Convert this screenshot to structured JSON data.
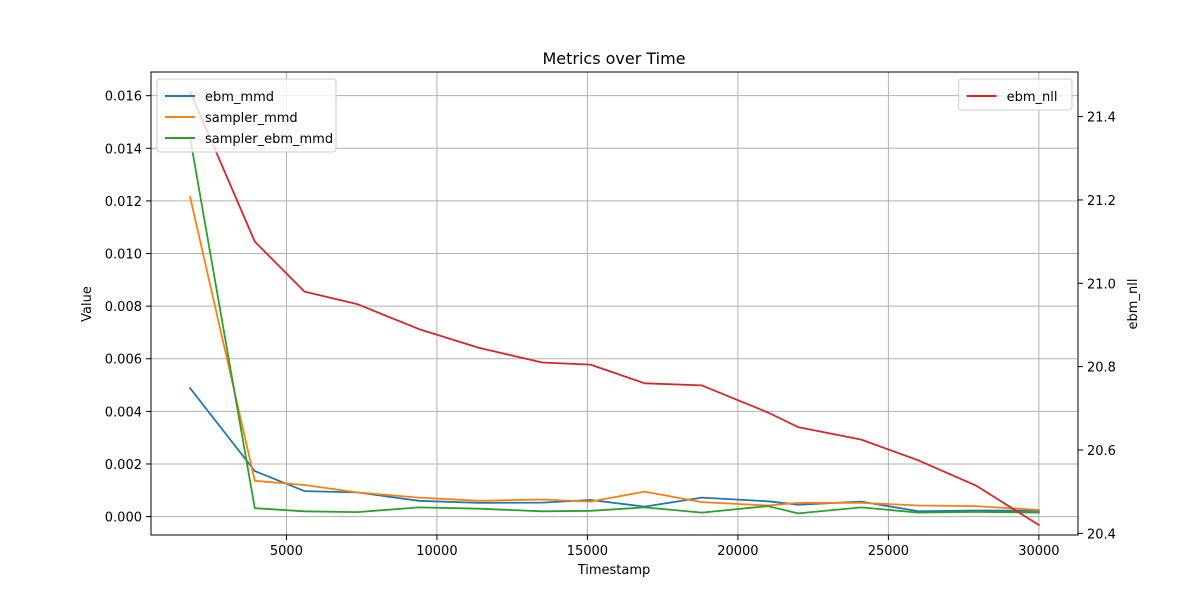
{
  "chart_data": {
    "type": "line",
    "title": "Metrics over Time",
    "xlabel": "Timestamp",
    "ylabel": "Value",
    "y2label": "ebm_nll",
    "xlim": [
      500,
      31300
    ],
    "ylim": [
      -0.0007,
      0.0169
    ],
    "y2lim": [
      20.396,
      21.507
    ],
    "xticks": [
      5000,
      10000,
      15000,
      20000,
      25000,
      30000
    ],
    "xtick_labels": [
      "5000",
      "10000",
      "15000",
      "20000",
      "25000",
      "30000"
    ],
    "yticks": [
      0.0,
      0.002,
      0.004,
      0.006,
      0.008,
      0.01,
      0.012,
      0.014,
      0.016
    ],
    "ytick_labels": [
      "0.000",
      "0.002",
      "0.004",
      "0.006",
      "0.008",
      "0.010",
      "0.012",
      "0.014",
      "0.016"
    ],
    "y2ticks": [
      20.4,
      20.6,
      20.8,
      21.0,
      21.2,
      21.4
    ],
    "y2tick_labels": [
      "20.4",
      "20.6",
      "20.8",
      "21.0",
      "21.2",
      "21.4"
    ],
    "grid": true,
    "legend_left_placement": "top-left",
    "legend_right_placement": "top-right",
    "x": [
      1800,
      3950,
      5600,
      7350,
      9400,
      11400,
      13500,
      15100,
      16900,
      18800,
      21000,
      22000,
      24100,
      26000,
      27900,
      30000
    ],
    "series": [
      {
        "name": "ebm_mmd",
        "axis": "left",
        "color": "#1f77b4",
        "values": [
          0.00488,
          0.00173,
          0.00097,
          0.00092,
          0.0006,
          0.00052,
          0.00053,
          0.00063,
          0.00038,
          0.00072,
          0.00058,
          0.00045,
          0.00057,
          0.0002,
          0.00023,
          0.00022
        ]
      },
      {
        "name": "sampler_mmd",
        "axis": "left",
        "color": "#ff7f0e",
        "values": [
          0.01215,
          0.00136,
          0.0012,
          0.00092,
          0.00072,
          0.0006,
          0.00065,
          0.00057,
          0.00095,
          0.00055,
          0.00042,
          0.00052,
          0.00052,
          0.00042,
          0.0004,
          0.00025
        ]
      },
      {
        "name": "sampler_ebm_mmd",
        "axis": "left",
        "color": "#2ca02c",
        "values": [
          0.0144,
          0.00032,
          0.0002,
          0.00017,
          0.00035,
          0.0003,
          0.0002,
          0.00022,
          0.00035,
          0.00015,
          0.0004,
          0.00012,
          0.00035,
          0.00015,
          0.00018,
          0.00015
        ]
      },
      {
        "name": "ebm_nll",
        "axis": "right",
        "color": "#d62728",
        "values": [
          21.46,
          21.1,
          20.98,
          20.95,
          20.89,
          20.845,
          20.81,
          20.805,
          20.76,
          20.755,
          20.69,
          20.655,
          20.625,
          20.575,
          20.515,
          20.42
        ]
      }
    ]
  }
}
